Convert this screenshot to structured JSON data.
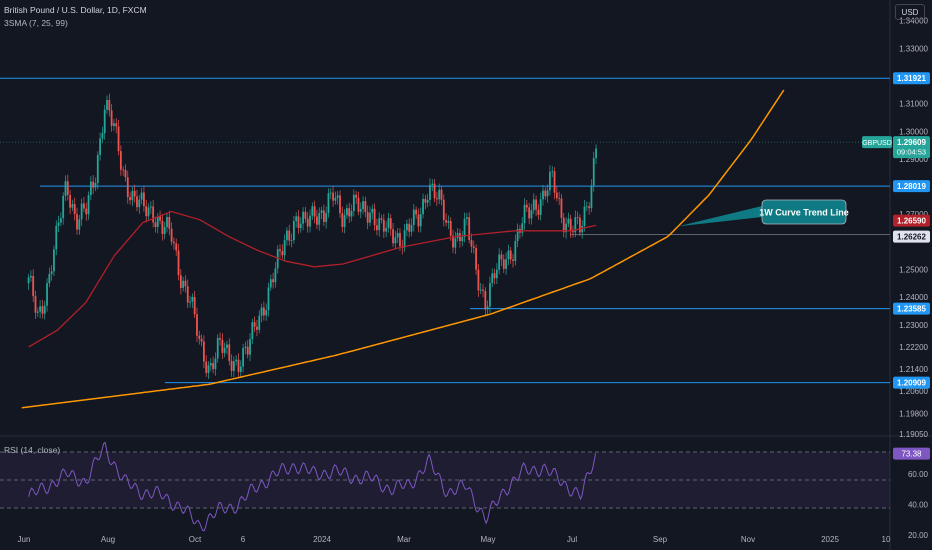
{
  "header": {
    "title": "British Pound / U.S. Dollar, 1D, FXCM",
    "indicator": "3SMA (7, 25, 99)",
    "currency_button": "USD"
  },
  "rsi": {
    "label": "RSI (14, close)",
    "current": "73.38",
    "levels": [
      "60.00",
      "40.00",
      "20.00"
    ]
  },
  "annotation": {
    "label": "1W Curve Trend Line"
  },
  "colors": {
    "background": "#131722",
    "up": "#26a69a",
    "down": "#ef5350",
    "level_line": "#2196f3",
    "sma": "#b2202a",
    "curve": "#ff9800",
    "rsi": "#7e57c2",
    "annotation_bg": "#0f7a83"
  },
  "chart_data": {
    "type": "candlestick",
    "symbol": "GBPUSD",
    "timeframe": "1D",
    "source": "FXCM",
    "x_tick_labels": [
      "Jun",
      "Aug",
      "Oct",
      "6",
      "2024",
      "Mar",
      "May",
      "Jul",
      "Sep",
      "Nov",
      "2025",
      "10"
    ],
    "y_tick_labels": [
      "1.34000",
      "1.33000",
      "1.31000",
      "1.30000",
      "1.29000",
      "1.27000",
      "1.25000",
      "1.24000",
      "1.23000",
      "1.22200",
      "1.21400",
      "1.20600",
      "1.19800",
      "1.19050"
    ],
    "y_range": [
      1.1905,
      1.3475
    ],
    "horizontal_levels": [
      "1.31921",
      "1.28019",
      "1.26262",
      "1.23585",
      "1.20909"
    ],
    "current_price": {
      "symbol_label": "GBPUSD",
      "price": "1.29609",
      "countdown": "09:04:53"
    },
    "sma_value": "1.26590",
    "close_path": [
      [
        "2023-05-20",
        1.245
      ],
      [
        "2023-05-27",
        1.233
      ],
      [
        "2023-06-03",
        1.245
      ],
      [
        "2023-06-10",
        1.262
      ],
      [
        "2023-06-17",
        1.282
      ],
      [
        "2023-06-24",
        1.268
      ],
      [
        "2023-07-01",
        1.27
      ],
      [
        "2023-07-08",
        1.285
      ],
      [
        "2023-07-15",
        1.31
      ],
      [
        "2023-07-22",
        1.3
      ],
      [
        "2023-07-29",
        1.285
      ],
      [
        "2023-08-05",
        1.275
      ],
      [
        "2023-08-12",
        1.272
      ],
      [
        "2023-08-19",
        1.272
      ],
      [
        "2023-08-26",
        1.265
      ],
      [
        "2023-09-02",
        1.262
      ],
      [
        "2023-09-09",
        1.248
      ],
      [
        "2023-09-16",
        1.238
      ],
      [
        "2023-09-23",
        1.222
      ],
      [
        "2023-09-30",
        1.215
      ],
      [
        "2023-10-07",
        1.222
      ],
      [
        "2023-10-14",
        1.218
      ],
      [
        "2023-10-21",
        1.217
      ],
      [
        "2023-10-28",
        1.22
      ],
      [
        "2023-11-04",
        1.232
      ],
      [
        "2023-11-11",
        1.24
      ],
      [
        "2023-11-18",
        1.25
      ],
      [
        "2023-11-25",
        1.262
      ],
      [
        "2023-12-02",
        1.268
      ],
      [
        "2023-12-09",
        1.265
      ],
      [
        "2023-12-16",
        1.272
      ],
      [
        "2023-12-23",
        1.27
      ],
      [
        "2023-12-30",
        1.276
      ],
      [
        "2024-01-06",
        1.27
      ],
      [
        "2024-01-13",
        1.274
      ],
      [
        "2024-01-20",
        1.27
      ],
      [
        "2024-01-27",
        1.272
      ],
      [
        "2024-02-03",
        1.265
      ],
      [
        "2024-02-10",
        1.263
      ],
      [
        "2024-02-17",
        1.262
      ],
      [
        "2024-02-24",
        1.265
      ],
      [
        "2024-03-02",
        1.268
      ],
      [
        "2024-03-09",
        1.282
      ],
      [
        "2024-03-16",
        1.275
      ],
      [
        "2024-03-23",
        1.265
      ],
      [
        "2024-03-30",
        1.262
      ],
      [
        "2024-04-06",
        1.265
      ],
      [
        "2024-04-13",
        1.25
      ],
      [
        "2024-04-20",
        1.238
      ],
      [
        "2024-04-27",
        1.248
      ],
      [
        "2024-05-04",
        1.255
      ],
      [
        "2024-05-11",
        1.258
      ],
      [
        "2024-05-18",
        1.268
      ],
      [
        "2024-05-25",
        1.274
      ],
      [
        "2024-06-01",
        1.276
      ],
      [
        "2024-06-08",
        1.282
      ],
      [
        "2024-06-15",
        1.27
      ],
      [
        "2024-06-22",
        1.265
      ],
      [
        "2024-06-29",
        1.264
      ],
      [
        "2024-07-06",
        1.28
      ],
      [
        "2024-07-10",
        1.296
      ]
    ],
    "sma_path": [
      [
        "2023-05-20",
        1.222
      ],
      [
        "2023-06-10",
        1.228
      ],
      [
        "2023-07-01",
        1.238
      ],
      [
        "2023-07-22",
        1.255
      ],
      [
        "2023-08-12",
        1.267
      ],
      [
        "2023-09-02",
        1.271
      ],
      [
        "2023-09-23",
        1.268
      ],
      [
        "2023-10-14",
        1.262
      ],
      [
        "2023-11-04",
        1.257
      ],
      [
        "2023-11-25",
        1.253
      ],
      [
        "2023-12-16",
        1.251
      ],
      [
        "2024-01-06",
        1.252
      ],
      [
        "2024-01-27",
        1.255
      ],
      [
        "2024-02-17",
        1.258
      ],
      [
        "2024-03-09",
        1.26
      ],
      [
        "2024-03-30",
        1.262
      ],
      [
        "2024-04-20",
        1.263
      ],
      [
        "2024-05-11",
        1.264
      ],
      [
        "2024-06-01",
        1.264
      ],
      [
        "2024-06-22",
        1.264
      ],
      [
        "2024-07-10",
        1.266
      ]
    ],
    "curve_trend_line": [
      [
        "2023-05-15",
        1.2
      ],
      [
        "2023-09-30",
        1.2085
      ],
      [
        "2024-01-01",
        1.219
      ],
      [
        "2024-04-23",
        1.2338
      ],
      [
        "2024-07-06",
        1.2467
      ],
      [
        "2024-09-01",
        1.262
      ],
      [
        "2024-10-01",
        1.277
      ],
      [
        "2024-11-01",
        1.297
      ],
      [
        "2024-11-25",
        1.315
      ]
    ],
    "rsi_path": [
      [
        "2023-05-20",
        45
      ],
      [
        "2023-06-03",
        52
      ],
      [
        "2023-06-17",
        60
      ],
      [
        "2023-07-01",
        55
      ],
      [
        "2023-07-15",
        78
      ],
      [
        "2023-07-29",
        55
      ],
      [
        "2023-08-12",
        48
      ],
      [
        "2023-08-26",
        46
      ],
      [
        "2023-09-09",
        38
      ],
      [
        "2023-09-23",
        26
      ],
      [
        "2023-10-07",
        36
      ],
      [
        "2023-10-21",
        40
      ],
      [
        "2023-11-04",
        52
      ],
      [
        "2023-11-18",
        60
      ],
      [
        "2023-12-02",
        66
      ],
      [
        "2023-12-16",
        60
      ],
      [
        "2023-12-30",
        62
      ],
      [
        "2024-01-13",
        58
      ],
      [
        "2024-01-27",
        57
      ],
      [
        "2024-02-10",
        50
      ],
      [
        "2024-02-24",
        53
      ],
      [
        "2024-03-09",
        68
      ],
      [
        "2024-03-23",
        48
      ],
      [
        "2024-04-06",
        52
      ],
      [
        "2024-04-20",
        30
      ],
      [
        "2024-05-04",
        50
      ],
      [
        "2024-05-18",
        62
      ],
      [
        "2024-06-01",
        64
      ],
      [
        "2024-06-15",
        55
      ],
      [
        "2024-06-29",
        45
      ],
      [
        "2024-07-10",
        73.38
      ]
    ],
    "rsi_range": [
      10,
      85
    ]
  }
}
